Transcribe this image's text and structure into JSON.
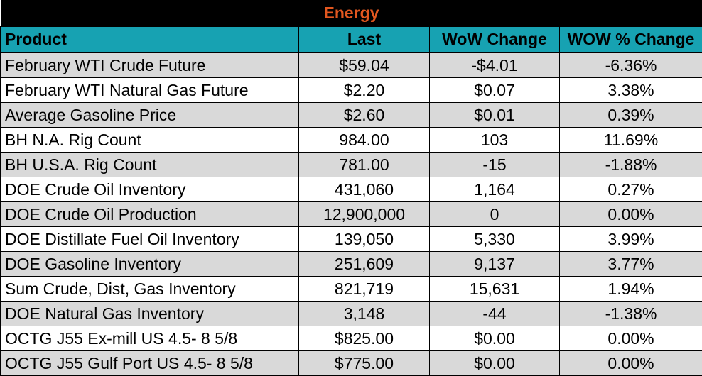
{
  "title": "Energy",
  "columns": [
    "Product",
    "Last",
    "WoW Change",
    "WOW % Change"
  ],
  "rows": [
    [
      "February WTI Crude Future",
      "$59.04",
      "-$4.01",
      "-6.36%"
    ],
    [
      "February WTI Natural Gas Future",
      "$2.20",
      "$0.07",
      "3.38%"
    ],
    [
      "Average Gasoline Price",
      "$2.60",
      "$0.01",
      "0.39%"
    ],
    [
      "BH N.A. Rig Count",
      "984.00",
      "103",
      "11.69%"
    ],
    [
      "BH U.S.A. Rig Count",
      "781.00",
      "-15",
      "-1.88%"
    ],
    [
      "DOE Crude Oil Inventory",
      "431,060",
      "1,164",
      "0.27%"
    ],
    [
      "DOE Crude Oil Production",
      "12,900,000",
      "0",
      "0.00%"
    ],
    [
      "DOE Distillate Fuel Oil Inventory",
      "139,050",
      "5,330",
      "3.99%"
    ],
    [
      "DOE Gasoline Inventory",
      "251,609",
      "9,137",
      "3.77%"
    ],
    [
      "Sum Crude, Dist, Gas Inventory",
      "821,719",
      "15,631",
      "1.94%"
    ],
    [
      "DOE Natural Gas Inventory",
      "3,148",
      "-44",
      "-1.38%"
    ],
    [
      "OCTG J55 Ex-mill US 4.5- 8 5/8",
      "$825.00",
      "$0.00",
      "0.00%"
    ],
    [
      "OCTG J55 Gulf Port US 4.5- 8 5/8",
      "$775.00",
      "$0.00",
      "0.00%"
    ]
  ],
  "colors": {
    "title_bg": "#000000",
    "title_text": "#e2571f",
    "header_bg": "#17a2b2",
    "row_alt_bg": "#d9d9d9",
    "row_bg": "#ffffff"
  }
}
